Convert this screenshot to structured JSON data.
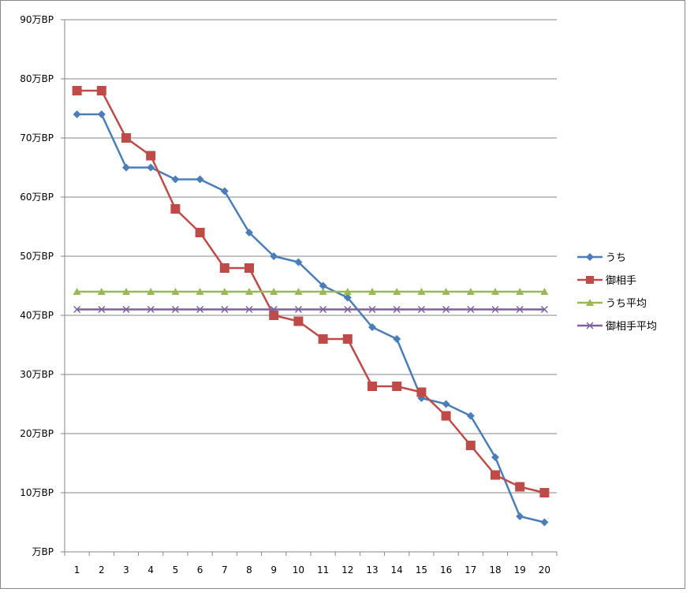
{
  "chart_data": {
    "type": "line",
    "title": "",
    "xlabel": "",
    "ylabel": "",
    "categories": [
      "1",
      "2",
      "3",
      "4",
      "5",
      "6",
      "7",
      "8",
      "9",
      "10",
      "11",
      "12",
      "13",
      "14",
      "15",
      "16",
      "17",
      "18",
      "19",
      "20"
    ],
    "y_tick_labels": [
      "万BP",
      "10万BP",
      "20万BP",
      "30万BP",
      "40万BP",
      "50万BP",
      "60万BP",
      "70万BP",
      "80万BP",
      "90万BP"
    ],
    "ylim": [
      0,
      90
    ],
    "grid": true,
    "legend_position": "right",
    "series": [
      {
        "name": "うち",
        "color": "#4a7ebb",
        "marker": "diamond",
        "values": [
          74,
          74,
          65,
          65,
          63,
          63,
          61,
          54,
          50,
          49,
          45,
          43,
          38,
          36,
          26,
          25,
          23,
          16,
          6,
          5
        ]
      },
      {
        "name": "御相手",
        "color": "#be4b48",
        "marker": "square",
        "values": [
          78,
          78,
          70,
          67,
          58,
          54,
          48,
          48,
          40,
          39,
          36,
          36,
          28,
          28,
          27,
          23,
          18,
          13,
          11,
          10
        ]
      },
      {
        "name": "うち平均",
        "color": "#98b954",
        "marker": "triangle",
        "values": [
          44,
          44,
          44,
          44,
          44,
          44,
          44,
          44,
          44,
          44,
          44,
          44,
          44,
          44,
          44,
          44,
          44,
          44,
          44,
          44
        ]
      },
      {
        "name": "御相手平均",
        "color": "#7d60a0",
        "marker": "x",
        "values": [
          41,
          41,
          41,
          41,
          41,
          41,
          41,
          41,
          41,
          41,
          41,
          41,
          41,
          41,
          41,
          41,
          41,
          41,
          41,
          41
        ]
      }
    ]
  }
}
